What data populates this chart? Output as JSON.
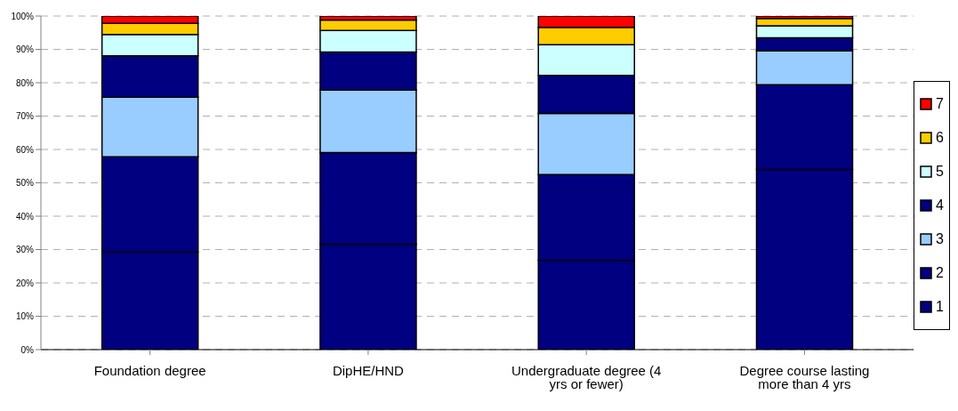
{
  "chart_data": {
    "type": "bar",
    "stacked": true,
    "categories": [
      "Foundation degree",
      "DipHE/HND",
      "Undergraduate degree (4 yrs or fewer)",
      "Degree course lasting more than 4 yrs"
    ],
    "series": [
      {
        "name": "1",
        "color": "#000080",
        "values": [
          29.3,
          31.6,
          26.8,
          54.0
        ]
      },
      {
        "name": "2",
        "color": "#000080",
        "values": [
          28.5,
          27.5,
          25.7,
          25.4
        ]
      },
      {
        "name": "3",
        "color": "#99ccff",
        "values": [
          17.9,
          18.7,
          18.3,
          10.2
        ]
      },
      {
        "name": "4",
        "color": "#000080",
        "values": [
          12.4,
          11.4,
          11.4,
          3.9
        ]
      },
      {
        "name": "5",
        "color": "#ccffff",
        "values": [
          6.4,
          6.5,
          9.2,
          3.6
        ]
      },
      {
        "name": "6",
        "color": "#ffcc00",
        "values": [
          3.3,
          3.1,
          5.2,
          2.2
        ]
      },
      {
        "name": "7",
        "color": "#ff0000",
        "values": [
          2.2,
          1.2,
          3.4,
          0.7
        ]
      }
    ],
    "ylim": [
      0,
      100
    ],
    "yticks": [
      {
        "value": 0,
        "label": "0%"
      },
      {
        "value": 10,
        "label": "10%"
      },
      {
        "value": 20,
        "label": "20%"
      },
      {
        "value": 30,
        "label": "30%"
      },
      {
        "value": 40,
        "label": "40%"
      },
      {
        "value": 50,
        "label": "50%"
      },
      {
        "value": 60,
        "label": "60%"
      },
      {
        "value": 70,
        "label": "70%"
      },
      {
        "value": 80,
        "label": "80%"
      },
      {
        "value": 90,
        "label": "90%"
      },
      {
        "value": 100,
        "label": "100%"
      }
    ],
    "grid": "y",
    "legend": "right"
  }
}
